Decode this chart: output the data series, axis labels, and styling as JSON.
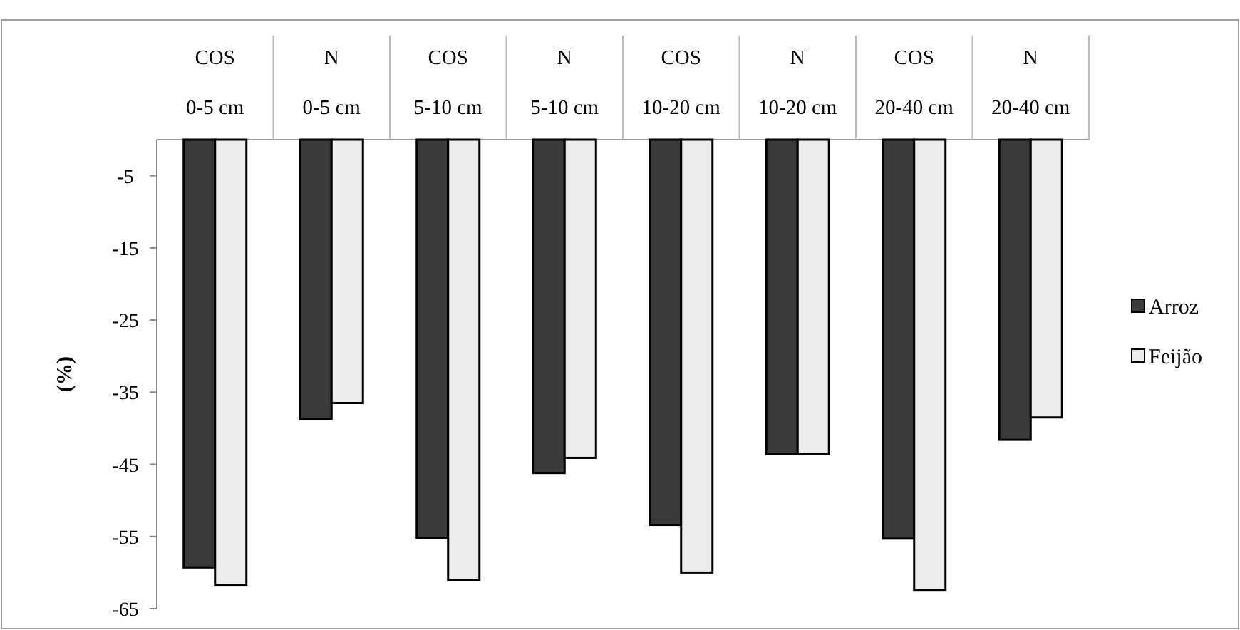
{
  "chart_data": {
    "type": "bar",
    "ylabel": "(%)",
    "categories": [
      "COS\n0-5 cm",
      "N\n0-5 cm",
      "COS\n5-10 cm",
      "N\n5-10 cm",
      "COS\n10-20 cm",
      "N\n10-20 cm",
      "COS\n20-40 cm",
      "N\n20-40 cm"
    ],
    "series": [
      {
        "name": "Arroz",
        "color": "#3a3a3a",
        "values": [
          -59.3,
          -38.7,
          -55.2,
          -46.2,
          -53.4,
          -43.6,
          -55.3,
          -41.6
        ]
      },
      {
        "name": "Feijão",
        "color": "#ececec",
        "values": [
          -61.7,
          -36.5,
          -61.0,
          -44.1,
          -60.0,
          -43.6,
          -62.4,
          -38.5
        ]
      }
    ],
    "ylim": [
      -65,
      0
    ],
    "yticks": [
      -5,
      -15,
      -25,
      -35,
      -45,
      -55,
      -65
    ],
    "grid": false,
    "legend": "right"
  }
}
